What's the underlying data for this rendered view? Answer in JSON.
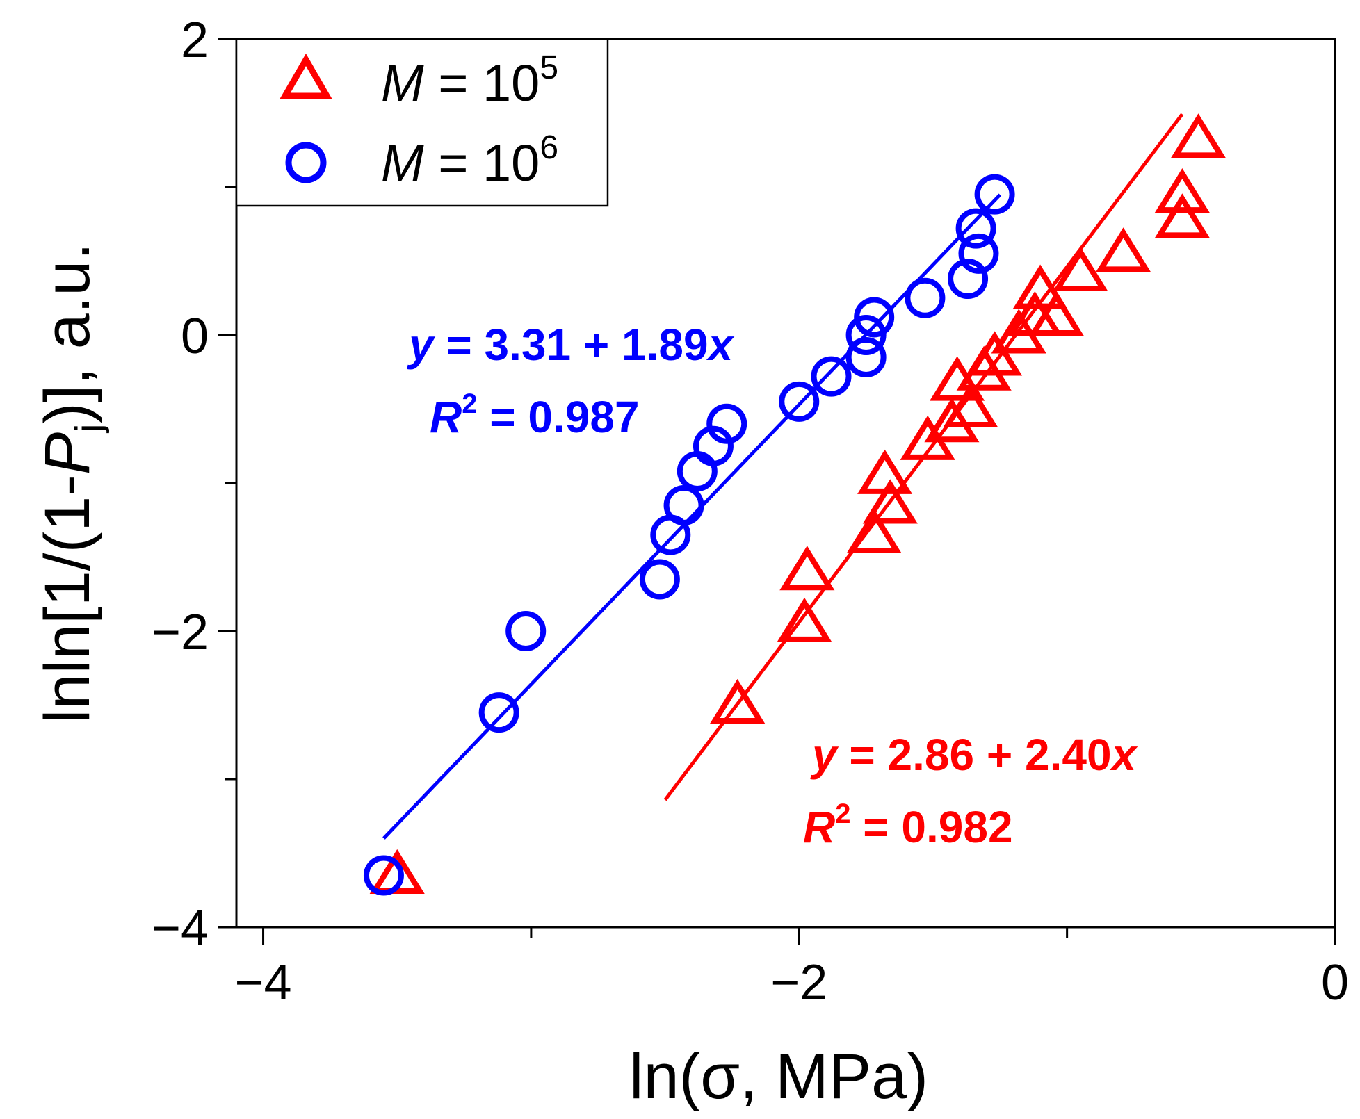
{
  "chart_data": {
    "type": "scatter",
    "xlabel": "ln(σ, MPa)",
    "ylabel": "lnln[1/(1-Pj)], a.u.",
    "xlim": [
      -4.1,
      0
    ],
    "ylim": [
      -4,
      2
    ],
    "x_ticks": [
      -4,
      -2,
      0
    ],
    "x_tick_labels": [
      "−4",
      "−2",
      "0"
    ],
    "y_ticks": [
      -4,
      -2,
      0,
      2
    ],
    "y_tick_labels": [
      "−4",
      "−2",
      "0",
      "2"
    ],
    "legend_position": "top-left",
    "series": [
      {
        "name": "M = 10^5",
        "legend_prefix": "M",
        "legend_eq": " = 10",
        "legend_exp": "5",
        "marker": "triangle",
        "color": "#ff0000",
        "points": [
          [
            -3.5,
            -3.65
          ],
          [
            -2.23,
            -2.5
          ],
          [
            -1.98,
            -1.95
          ],
          [
            -1.97,
            -1.6
          ],
          [
            -1.72,
            -1.35
          ],
          [
            -1.66,
            -1.15
          ],
          [
            -1.68,
            -0.95
          ],
          [
            -1.52,
            -0.72
          ],
          [
            -1.43,
            -0.6
          ],
          [
            -1.36,
            -0.5
          ],
          [
            -1.41,
            -0.32
          ],
          [
            -1.31,
            -0.25
          ],
          [
            -1.27,
            -0.15
          ],
          [
            -1.18,
            0.0
          ],
          [
            -1.12,
            0.12
          ],
          [
            -1.04,
            0.12
          ],
          [
            -1.1,
            0.3
          ],
          [
            -0.95,
            0.42
          ],
          [
            -0.79,
            0.55
          ],
          [
            -0.57,
            0.78
          ],
          [
            -0.57,
            0.95
          ],
          [
            -0.51,
            1.32
          ]
        ],
        "fit": {
          "intercept": 2.86,
          "slope": 2.4,
          "x_range": [
            -2.5,
            -0.57
          ]
        },
        "fit_equation": {
          "y": "y",
          "eq": " = 2.86 + 2.40",
          "x": "x"
        },
        "fit_r2": {
          "r": "R",
          "exp": "2",
          "eq": " = 0.982"
        }
      },
      {
        "name": "M = 10^6",
        "legend_prefix": "M",
        "legend_eq": " = 10",
        "legend_exp": "6",
        "marker": "circle",
        "color": "#0000ff",
        "points": [
          [
            -3.55,
            -3.65
          ],
          [
            -3.12,
            -2.55
          ],
          [
            -3.02,
            -2.0
          ],
          [
            -2.52,
            -1.65
          ],
          [
            -2.48,
            -1.35
          ],
          [
            -2.43,
            -1.15
          ],
          [
            -2.38,
            -0.92
          ],
          [
            -2.32,
            -0.75
          ],
          [
            -2.27,
            -0.6
          ],
          [
            -2.0,
            -0.45
          ],
          [
            -1.88,
            -0.28
          ],
          [
            -1.75,
            -0.15
          ],
          [
            -1.75,
            0.0
          ],
          [
            -1.72,
            0.12
          ],
          [
            -1.53,
            0.25
          ],
          [
            -1.37,
            0.38
          ],
          [
            -1.33,
            0.55
          ],
          [
            -1.34,
            0.72
          ],
          [
            -1.27,
            0.95
          ]
        ],
        "fit": {
          "intercept": 3.31,
          "slope": 1.89,
          "x_range": [
            -3.55,
            -1.25
          ]
        },
        "fit_equation": {
          "y": "y",
          "eq": " = 3.31 + 1.89",
          "x": "x"
        },
        "fit_r2": {
          "r": "R",
          "exp": "2",
          "eq": " = 0.987"
        }
      }
    ]
  }
}
